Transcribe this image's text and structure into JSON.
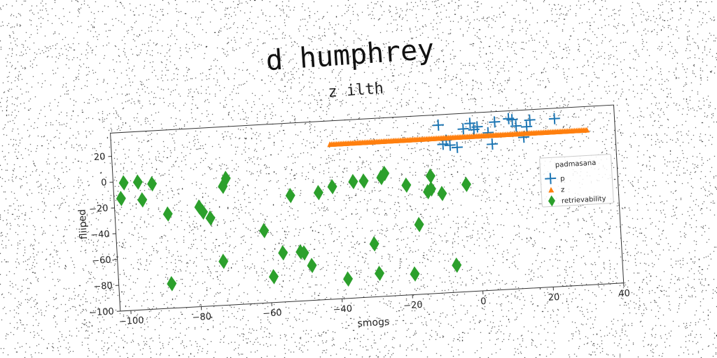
{
  "chart_data": {
    "type": "scatter",
    "title": "d humphrey",
    "subtitle": "z ilth",
    "xlabel": "smogs",
    "ylabel": "fliiped",
    "xlim": [
      -103,
      40
    ],
    "ylim": [
      -100,
      38
    ],
    "x_ticks": [
      -100,
      -80,
      -60,
      -40,
      -20,
      0,
      20,
      40
    ],
    "y_ticks": [
      -100,
      -80,
      -60,
      -40,
      -20,
      0,
      20
    ],
    "grid": false,
    "legend": {
      "title": "padmasana",
      "placement": "center-right"
    },
    "series": [
      {
        "name": "p",
        "marker": "plus",
        "color": "#1f77b4",
        "points": [
          [
            -10,
            30
          ],
          [
            -1,
            30
          ],
          [
            6,
            30
          ],
          [
            11,
            31
          ],
          [
            10,
            32
          ],
          [
            16,
            30
          ],
          [
            23,
            30
          ],
          [
            -3,
            26
          ],
          [
            0,
            25
          ],
          [
            1,
            27
          ],
          [
            12,
            26
          ],
          [
            15,
            25
          ],
          [
            4,
            22
          ],
          [
            14,
            17
          ],
          [
            -8,
            18
          ],
          [
            -9,
            15
          ],
          [
            -7,
            14
          ],
          [
            -5,
            12
          ],
          [
            5,
            13
          ]
        ]
      },
      {
        "name": "z",
        "marker": "triangle",
        "color": "#ff7f0e",
        "line_from": [
          -41,
          20
        ],
        "line_to": [
          32,
          20
        ],
        "count": 150
      },
      {
        "name": "retrievability",
        "marker": "diamond",
        "color": "#2ca02c",
        "points": [
          [
            -100,
            -1
          ],
          [
            -96,
            -1
          ],
          [
            -92,
            -3
          ],
          [
            -101,
            -13
          ],
          [
            -95,
            -15
          ],
          [
            -88,
            -27
          ],
          [
            -79,
            -23
          ],
          [
            -78,
            -27
          ],
          [
            -76,
            -32
          ],
          [
            -72,
            -8
          ],
          [
            -71,
            -2
          ],
          [
            -61,
            -44
          ],
          [
            -56,
            -62
          ],
          [
            -53,
            -18
          ],
          [
            -51,
            -62
          ],
          [
            -50,
            -63
          ],
          [
            -48,
            -73
          ],
          [
            -45,
            -17
          ],
          [
            -41,
            -13
          ],
          [
            -35,
            -10
          ],
          [
            -32,
            -10
          ],
          [
            -30,
            -59
          ],
          [
            -29,
            -82
          ],
          [
            -27,
            -8
          ],
          [
            -26,
            -5
          ],
          [
            -20,
            -15
          ],
          [
            -19,
            -84
          ],
          [
            -17,
            -46
          ],
          [
            -14,
            -21
          ],
          [
            -13,
            -19
          ],
          [
            -13,
            -9
          ],
          [
            -10,
            -23
          ],
          [
            -7,
            -79
          ],
          [
            -73,
            -66
          ],
          [
            -59,
            -80
          ],
          [
            -88,
            -81
          ],
          [
            -38,
            -85
          ],
          [
            -3,
            -17
          ]
        ]
      }
    ]
  }
}
